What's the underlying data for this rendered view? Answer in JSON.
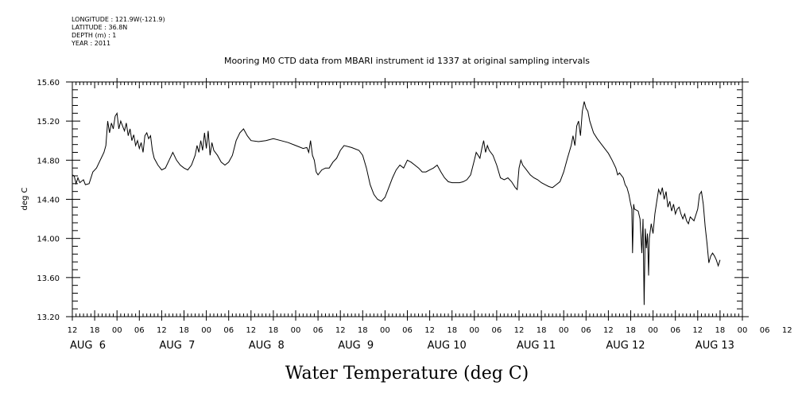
{
  "meta": {
    "longitude": "LONGITUDE : 121.9W(-121.9)",
    "latitude": "LATITUDE : 36.8N",
    "depth": "DEPTH (m) : 1",
    "year": "YEAR : 2011"
  },
  "chart_data": {
    "type": "line",
    "title": "Mooring M0 CTD data from MBARI instrument id 1337 at original sampling intervals",
    "xlabel": "Water Temperature (deg C)",
    "ylabel": "deg C",
    "ylim": [
      13.2,
      15.6
    ],
    "yticks": [
      "15.60",
      "15.20",
      "14.80",
      "14.40",
      "14.00",
      "13.60",
      "13.20"
    ],
    "xlim_hours": [
      12,
      192
    ],
    "hour_tick_labels": [
      "12",
      "18",
      "00",
      "06",
      "12",
      "18",
      "00",
      "06",
      "12",
      "18",
      "00",
      "06",
      "12",
      "18",
      "00",
      "06",
      "12",
      "18",
      "00",
      "06",
      "12",
      "18",
      "00",
      "06",
      "12",
      "18",
      "00",
      "06",
      "12",
      "18",
      "00",
      "06",
      "12"
    ],
    "day_labels": [
      "AUG  6",
      "AUG  7",
      "AUG  8",
      "AUG  9",
      "AUG 10",
      "AUG 11",
      "AUG 12",
      "AUG 13"
    ],
    "grid": false,
    "line_color": "#000000",
    "series": [
      {
        "values": [
          [
            12.0,
            14.65
          ],
          [
            12.5,
            14.64
          ],
          [
            13.0,
            14.56
          ],
          [
            13.5,
            14.62
          ],
          [
            14.0,
            14.57
          ],
          [
            15.0,
            14.6
          ],
          [
            15.5,
            14.55
          ],
          [
            16.5,
            14.56
          ],
          [
            17.5,
            14.68
          ],
          [
            18.5,
            14.72
          ],
          [
            19.5,
            14.8
          ],
          [
            20.5,
            14.88
          ],
          [
            21.0,
            14.95
          ],
          [
            21.5,
            15.2
          ],
          [
            22.0,
            15.08
          ],
          [
            22.5,
            15.18
          ],
          [
            23.0,
            15.12
          ],
          [
            23.5,
            15.25
          ],
          [
            24.0,
            15.28
          ],
          [
            24.5,
            15.12
          ],
          [
            25.0,
            15.2
          ],
          [
            25.5,
            15.15
          ],
          [
            26.0,
            15.1
          ],
          [
            26.5,
            15.18
          ],
          [
            27.0,
            15.05
          ],
          [
            27.5,
            15.12
          ],
          [
            28.0,
            15.0
          ],
          [
            28.5,
            15.06
          ],
          [
            29.0,
            14.95
          ],
          [
            29.5,
            15.0
          ],
          [
            30.0,
            14.92
          ],
          [
            30.5,
            14.98
          ],
          [
            31.0,
            14.88
          ],
          [
            31.5,
            15.05
          ],
          [
            32.0,
            15.08
          ],
          [
            32.5,
            15.02
          ],
          [
            33.0,
            15.05
          ],
          [
            33.5,
            14.9
          ],
          [
            34.0,
            14.82
          ],
          [
            35.0,
            14.75
          ],
          [
            36.0,
            14.7
          ],
          [
            37.0,
            14.72
          ],
          [
            38.0,
            14.8
          ],
          [
            39.0,
            14.88
          ],
          [
            40.0,
            14.8
          ],
          [
            41.0,
            14.75
          ],
          [
            42.0,
            14.72
          ],
          [
            43.0,
            14.7
          ],
          [
            44.0,
            14.75
          ],
          [
            45.0,
            14.85
          ],
          [
            45.5,
            14.95
          ],
          [
            46.0,
            14.88
          ],
          [
            46.5,
            15.0
          ],
          [
            47.0,
            14.9
          ],
          [
            47.5,
            15.08
          ],
          [
            48.0,
            14.92
          ],
          [
            48.5,
            15.1
          ],
          [
            49.0,
            14.85
          ],
          [
            49.5,
            14.98
          ],
          [
            50.0,
            14.9
          ],
          [
            51.0,
            14.85
          ],
          [
            52.0,
            14.78
          ],
          [
            53.0,
            14.75
          ],
          [
            54.0,
            14.78
          ],
          [
            55.0,
            14.85
          ],
          [
            56.0,
            15.0
          ],
          [
            57.0,
            15.08
          ],
          [
            58.0,
            15.12
          ],
          [
            59.0,
            15.05
          ],
          [
            60.0,
            15.0
          ],
          [
            62.0,
            14.99
          ],
          [
            64.0,
            15.0
          ],
          [
            66.0,
            15.02
          ],
          [
            68.0,
            15.0
          ],
          [
            70.0,
            14.98
          ],
          [
            72.0,
            14.95
          ],
          [
            74.0,
            14.92
          ],
          [
            75.0,
            14.93
          ],
          [
            75.5,
            14.88
          ],
          [
            76.0,
            15.0
          ],
          [
            76.5,
            14.85
          ],
          [
            77.0,
            14.8
          ],
          [
            77.5,
            14.68
          ],
          [
            78.0,
            14.65
          ],
          [
            79.0,
            14.7
          ],
          [
            80.0,
            14.72
          ],
          [
            81.0,
            14.72
          ],
          [
            82.0,
            14.78
          ],
          [
            83.0,
            14.82
          ],
          [
            84.0,
            14.9
          ],
          [
            85.0,
            14.95
          ],
          [
            87.0,
            14.93
          ],
          [
            89.0,
            14.9
          ],
          [
            90.0,
            14.85
          ],
          [
            91.0,
            14.72
          ],
          [
            92.0,
            14.55
          ],
          [
            93.0,
            14.45
          ],
          [
            94.0,
            14.4
          ],
          [
            95.0,
            14.38
          ],
          [
            96.0,
            14.42
          ],
          [
            97.0,
            14.52
          ],
          [
            98.0,
            14.62
          ],
          [
            99.0,
            14.7
          ],
          [
            100.0,
            14.75
          ],
          [
            101.0,
            14.72
          ],
          [
            102.0,
            14.8
          ],
          [
            103.0,
            14.78
          ],
          [
            104.0,
            14.75
          ],
          [
            105.0,
            14.72
          ],
          [
            106.0,
            14.68
          ],
          [
            107.0,
            14.68
          ],
          [
            108.0,
            14.7
          ],
          [
            109.0,
            14.72
          ],
          [
            110.0,
            14.75
          ],
          [
            111.0,
            14.68
          ],
          [
            112.0,
            14.62
          ],
          [
            113.0,
            14.58
          ],
          [
            114.0,
            14.57
          ],
          [
            116.0,
            14.57
          ],
          [
            117.0,
            14.58
          ],
          [
            118.0,
            14.6
          ],
          [
            119.0,
            14.65
          ],
          [
            120.0,
            14.8
          ],
          [
            120.5,
            14.88
          ],
          [
            121.0,
            14.85
          ],
          [
            121.5,
            14.82
          ],
          [
            122.0,
            14.92
          ],
          [
            122.5,
            15.0
          ],
          [
            123.0,
            14.88
          ],
          [
            123.5,
            14.95
          ],
          [
            124.0,
            14.9
          ],
          [
            125.0,
            14.85
          ],
          [
            126.0,
            14.75
          ],
          [
            127.0,
            14.62
          ],
          [
            128.0,
            14.6
          ],
          [
            129.0,
            14.62
          ],
          [
            130.0,
            14.58
          ],
          [
            131.0,
            14.52
          ],
          [
            131.5,
            14.5
          ],
          [
            132.0,
            14.72
          ],
          [
            132.5,
            14.8
          ],
          [
            133.0,
            14.75
          ],
          [
            134.0,
            14.7
          ],
          [
            135.0,
            14.65
          ],
          [
            136.0,
            14.62
          ],
          [
            137.0,
            14.6
          ],
          [
            138.0,
            14.57
          ],
          [
            139.0,
            14.55
          ],
          [
            140.0,
            14.53
          ],
          [
            141.0,
            14.52
          ],
          [
            142.0,
            14.55
          ],
          [
            143.0,
            14.58
          ],
          [
            144.0,
            14.68
          ],
          [
            145.0,
            14.82
          ],
          [
            146.0,
            14.95
          ],
          [
            146.5,
            15.05
          ],
          [
            147.0,
            14.95
          ],
          [
            147.5,
            15.15
          ],
          [
            148.0,
            15.2
          ],
          [
            148.5,
            15.05
          ],
          [
            149.0,
            15.3
          ],
          [
            149.5,
            15.4
          ],
          [
            150.0,
            15.33
          ],
          [
            150.5,
            15.3
          ],
          [
            151.0,
            15.2
          ],
          [
            152.0,
            15.08
          ],
          [
            153.0,
            15.02
          ],
          [
            154.0,
            14.97
          ],
          [
            155.0,
            14.92
          ],
          [
            156.0,
            14.87
          ],
          [
            157.0,
            14.8
          ],
          [
            158.0,
            14.72
          ],
          [
            158.5,
            14.65
          ],
          [
            159.0,
            14.67
          ],
          [
            160.0,
            14.62
          ],
          [
            160.5,
            14.55
          ],
          [
            161.0,
            14.52
          ],
          [
            161.5,
            14.45
          ],
          [
            162.0,
            14.35
          ],
          [
            162.3,
            14.3
          ],
          [
            162.5,
            13.85
          ],
          [
            162.8,
            14.35
          ],
          [
            163.0,
            14.3
          ],
          [
            164.0,
            14.28
          ],
          [
            164.5,
            14.2
          ],
          [
            165.0,
            13.85
          ],
          [
            165.3,
            14.2
          ],
          [
            165.6,
            13.32
          ],
          [
            165.9,
            14.1
          ],
          [
            166.2,
            13.9
          ],
          [
            166.5,
            14.05
          ],
          [
            166.8,
            13.62
          ],
          [
            167.0,
            14.0
          ],
          [
            167.5,
            14.15
          ],
          [
            168.0,
            14.05
          ],
          [
            168.5,
            14.25
          ],
          [
            169.0,
            14.38
          ],
          [
            169.5,
            14.5
          ],
          [
            170.0,
            14.45
          ],
          [
            170.5,
            14.52
          ],
          [
            171.0,
            14.4
          ],
          [
            171.5,
            14.48
          ],
          [
            172.0,
            14.32
          ],
          [
            172.5,
            14.38
          ],
          [
            173.0,
            14.28
          ],
          [
            173.5,
            14.35
          ],
          [
            174.0,
            14.25
          ],
          [
            174.5,
            14.3
          ],
          [
            175.0,
            14.32
          ],
          [
            175.5,
            14.25
          ],
          [
            176.0,
            14.2
          ],
          [
            176.5,
            14.25
          ],
          [
            177.0,
            14.18
          ],
          [
            177.5,
            14.15
          ],
          [
            178.0,
            14.22
          ],
          [
            179.0,
            14.18
          ],
          [
            180.0,
            14.3
          ],
          [
            180.5,
            14.45
          ],
          [
            181.0,
            14.48
          ],
          [
            181.5,
            14.35
          ],
          [
            182.0,
            14.12
          ],
          [
            182.5,
            13.95
          ],
          [
            183.0,
            13.75
          ],
          [
            183.5,
            13.82
          ],
          [
            184.0,
            13.85
          ],
          [
            184.5,
            13.82
          ],
          [
            185.0,
            13.78
          ],
          [
            185.5,
            13.72
          ],
          [
            186.0,
            13.78
          ]
        ]
      }
    ]
  }
}
